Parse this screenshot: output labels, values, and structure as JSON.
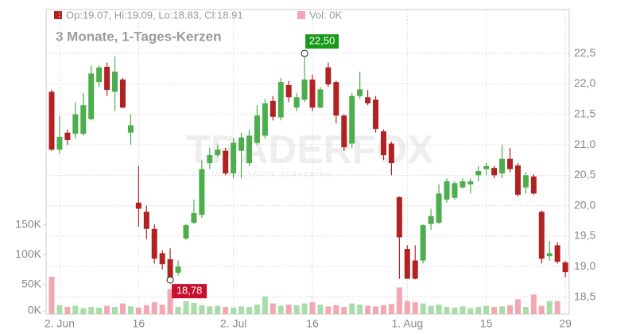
{
  "chart_data": {
    "type": "candlestick",
    "header_price": "Op:19.07, Hi:19.09, Lo:18.83, Cl:18.91",
    "header_volume": "Vol: 0K",
    "subtitle": "3 Monate, 1-Tages-Kerzen",
    "watermark": "TRADERFOX",
    "watermark_tagline": "ALL-IN-ONE STOCK SCREENING",
    "categories": [
      null,
      "2. Jun",
      null,
      null,
      null,
      null,
      null,
      null,
      null,
      null,
      null,
      "16",
      null,
      null,
      null,
      null,
      null,
      null,
      null,
      null,
      null,
      null,
      null,
      "2. Jul",
      null,
      null,
      null,
      null,
      null,
      null,
      null,
      null,
      null,
      "16",
      null,
      null,
      null,
      null,
      null,
      null,
      null,
      null,
      null,
      null,
      null,
      "1. Aug",
      null,
      null,
      null,
      null,
      null,
      null,
      null,
      null,
      null,
      "15",
      null,
      null,
      null,
      null,
      null,
      null,
      null,
      null,
      null,
      "29"
    ],
    "open": [
      21.87,
      20.92,
      21.2,
      21.18,
      21.18,
      21.42,
      22.03,
      22.28,
      21.87,
      22.07,
      21.2,
      20.05,
      19.9,
      19.62,
      19.22,
      19.12,
      18.9,
      19.46,
      19.72,
      19.85,
      20.7,
      20.83,
      20.9,
      20.53,
      20.9,
      20.7,
      21.03,
      21.15,
      21.72,
      21.45,
      21.98,
      21.61,
      21.74,
      22.07,
      21.61,
      22.27,
      22.03,
      21.48,
      21.02,
      21.8,
      21.78,
      21.74,
      21.22,
      21.02,
      20.14,
      19.29,
      19.1,
      19.1,
      19.7,
      19.72,
      20.1,
      20.13,
      20.3,
      20.35,
      20.5,
      20.6,
      20.62,
      20.53,
      20.77,
      20.66,
      20.3,
      20.48,
      19.9,
      19.17,
      19.35,
      19.07
    ],
    "high": [
      21.9,
      21.48,
      21.25,
      21.7,
      21.85,
      22.3,
      22.3,
      22.35,
      22.45,
      22.1,
      21.5,
      20.65,
      20.0,
      19.7,
      19.27,
      19.3,
      19.1,
      19.7,
      20.1,
      20.75,
      20.95,
      21.0,
      20.95,
      21.1,
      21.2,
      21.25,
      21.65,
      21.75,
      21.8,
      22.1,
      22.05,
      21.85,
      22.5,
      22.15,
      21.95,
      22.35,
      22.05,
      21.5,
      21.85,
      22.2,
      21.9,
      21.8,
      21.25,
      21.05,
      20.15,
      19.35,
      19.35,
      19.7,
      19.95,
      20.35,
      20.45,
      20.4,
      20.45,
      20.45,
      20.65,
      20.7,
      20.65,
      21.0,
      20.95,
      20.7,
      20.55,
      20.52,
      19.92,
      19.42,
      19.4,
      19.09
    ],
    "low": [
      20.9,
      20.85,
      21.0,
      21.1,
      21.15,
      21.4,
      21.95,
      21.8,
      21.55,
      21.6,
      21.0,
      19.65,
      19.45,
      19.05,
      18.95,
      18.78,
      18.85,
      19.44,
      19.7,
      19.8,
      20.6,
      20.8,
      20.5,
      20.45,
      20.45,
      20.65,
      21.0,
      21.1,
      21.4,
      21.4,
      21.7,
      21.55,
      21.7,
      21.55,
      21.6,
      21.95,
      21.35,
      20.9,
      20.95,
      21.75,
      21.65,
      21.2,
      20.75,
      20.5,
      18.8,
      18.8,
      18.79,
      19.05,
      19.6,
      19.7,
      20.05,
      20.1,
      20.28,
      20.2,
      20.4,
      20.5,
      20.45,
      20.45,
      20.55,
      20.15,
      20.2,
      20.18,
      19.05,
      19.1,
      19.05,
      18.83
    ],
    "close": [
      20.92,
      21.13,
      21.08,
      21.5,
      21.65,
      22.17,
      22.27,
      21.9,
      22.2,
      21.61,
      21.32,
      19.95,
      19.62,
      19.13,
      19.04,
      18.8,
      19.0,
      19.68,
      19.88,
      20.6,
      20.83,
      20.92,
      20.53,
      21.03,
      21.12,
      21.15,
      21.48,
      21.68,
      21.46,
      22.03,
      21.78,
      21.78,
      22.07,
      21.61,
      21.91,
      21.99,
      21.48,
      20.96,
      21.8,
      21.91,
      21.68,
      21.26,
      20.83,
      20.7,
      19.48,
      18.8,
      18.8,
      19.68,
      19.83,
      20.2,
      20.4,
      20.37,
      20.4,
      20.4,
      20.57,
      20.65,
      20.5,
      20.77,
      20.6,
      20.18,
      20.5,
      20.2,
      19.13,
      19.22,
      19.08,
      18.91
    ],
    "volume": [
      63000,
      15000,
      12000,
      14000,
      10000,
      12000,
      11000,
      14000,
      12000,
      18000,
      13000,
      11000,
      15000,
      20000,
      16000,
      42000,
      12000,
      22000,
      19000,
      15000,
      13000,
      14000,
      12000,
      11000,
      13000,
      12000,
      16000,
      30000,
      18000,
      14000,
      16000,
      15000,
      18000,
      20000,
      16000,
      13000,
      15000,
      12000,
      18000,
      16000,
      14000,
      13000,
      15000,
      17000,
      45000,
      22000,
      20000,
      18000,
      14000,
      16000,
      12000,
      11000,
      13000,
      10000,
      12000,
      14000,
      12000,
      13000,
      15000,
      25000,
      12000,
      33000,
      14000,
      22000,
      22000,
      0
    ],
    "up_color": "#4cae4c",
    "down_color": "#b22222",
    "volume_up_color": "#a8dca8",
    "volume_down_color": "#f2a7b3",
    "ylim": [
      18.22,
      23.22
    ],
    "yticks": [
      {
        "value": 18.5,
        "label": "18,5"
      },
      {
        "value": 19,
        "label": "19,0"
      },
      {
        "value": 19.5,
        "label": "19,5"
      },
      {
        "value": 20,
        "label": "20,0"
      },
      {
        "value": 20.5,
        "label": "20,5"
      },
      {
        "value": 21,
        "label": "21,0"
      },
      {
        "value": 21.5,
        "label": "21,5"
      },
      {
        "value": 22,
        "label": "22,0"
      },
      {
        "value": 22.5,
        "label": "22,5"
      }
    ],
    "y2lim": [
      0,
      513000
    ],
    "y2ticks": [
      {
        "value": 0,
        "label": "0K"
      },
      {
        "value": 50000,
        "label": "50K"
      },
      {
        "value": 100000,
        "label": "100K"
      },
      {
        "value": 150000,
        "label": "150K"
      }
    ],
    "max_label": {
      "value": 22.5,
      "label": "22,50"
    },
    "min_label": {
      "value": 18.78,
      "label": "18,78"
    },
    "grid": true
  }
}
